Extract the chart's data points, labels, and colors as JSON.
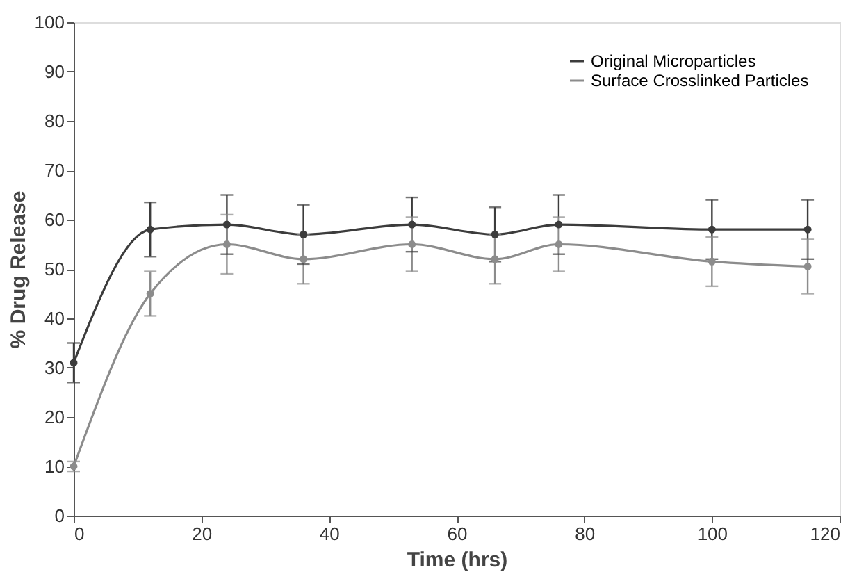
{
  "chart_data": {
    "type": "line",
    "xlabel": "Time (hrs)",
    "ylabel": "% Drug Release",
    "x": [
      0,
      12,
      24,
      36,
      53,
      66,
      76,
      100,
      115
    ],
    "series": [
      {
        "name": "Original Microparticles",
        "color": "#3c3c3c",
        "values": [
          31,
          58,
          59,
          57,
          59,
          57,
          59,
          58,
          58
        ],
        "errors": [
          4,
          5.5,
          6,
          6,
          5.5,
          5.5,
          6,
          6,
          6
        ]
      },
      {
        "name": "Surface Crosslinked Particles",
        "color": "#8c8c8c",
        "values": [
          10,
          45,
          55,
          52,
          55,
          52,
          55,
          51.5,
          50.5
        ],
        "errors": [
          1,
          4.5,
          6,
          5,
          5.5,
          5,
          5.5,
          5,
          5.5
        ]
      }
    ],
    "xlim": [
      0,
      120
    ],
    "xticks": [
      0,
      20,
      40,
      60,
      80,
      100,
      120
    ],
    "ylim": [
      0,
      100
    ],
    "yticks": [
      0,
      10,
      20,
      30,
      40,
      50,
      60,
      70,
      80,
      90,
      100
    ],
    "grid": false,
    "legend": "top right",
    "marker": "circle",
    "line_style": "solid"
  }
}
